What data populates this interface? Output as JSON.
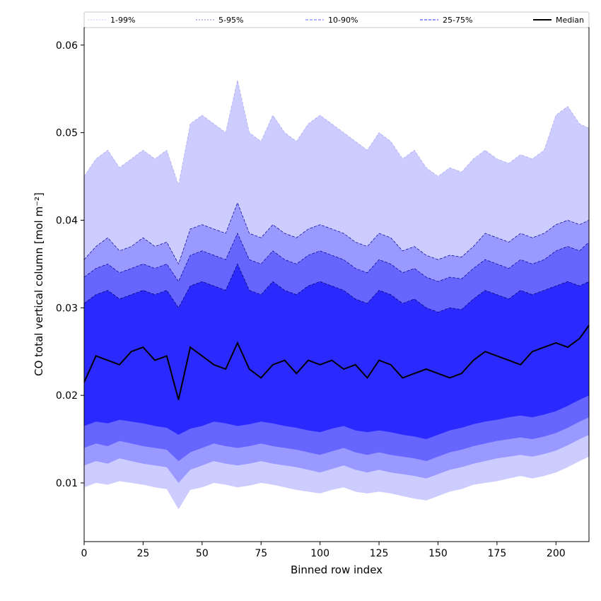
{
  "chart_data": {
    "type": "area",
    "xlabel": "Binned row index",
    "ylabel": "CO total vertical column [mol m⁻²]",
    "xlim": [
      0,
      214
    ],
    "ylim": [
      0.0033,
      0.062
    ],
    "x_ticks": [
      0,
      25,
      50,
      75,
      100,
      125,
      150,
      175,
      200
    ],
    "y_ticks": [
      0.01,
      0.02,
      0.03,
      0.04,
      0.05,
      0.06
    ],
    "x_tick_labels": [
      "0",
      "25",
      "50",
      "75",
      "100",
      "125",
      "150",
      "175",
      "200"
    ],
    "y_tick_labels": [
      "0.01",
      "0.02",
      "0.03",
      "0.04",
      "0.05",
      "0.06"
    ],
    "grid": false,
    "legend_position": "top, spanning full width",
    "legend": [
      "1-99%",
      "5-95%",
      "10-90%",
      "25-75%",
      "Median"
    ],
    "x": [
      0,
      5,
      10,
      15,
      20,
      25,
      30,
      35,
      40,
      45,
      50,
      55,
      60,
      65,
      70,
      75,
      80,
      85,
      90,
      95,
      100,
      105,
      110,
      115,
      120,
      125,
      130,
      135,
      140,
      145,
      150,
      155,
      160,
      165,
      170,
      175,
      180,
      185,
      190,
      195,
      200,
      205,
      210,
      214
    ],
    "bands": [
      {
        "name": "1-99%",
        "color": "#ccccff",
        "line_color": "#aaaaee",
        "lower": [
          0.0095,
          0.01,
          0.0098,
          0.0102,
          0.01,
          0.0098,
          0.0095,
          0.0093,
          0.007,
          0.0092,
          0.0095,
          0.01,
          0.0098,
          0.0095,
          0.0097,
          0.01,
          0.0098,
          0.0095,
          0.0092,
          0.009,
          0.0088,
          0.0092,
          0.0095,
          0.009,
          0.0088,
          0.009,
          0.0088,
          0.0085,
          0.0082,
          0.008,
          0.0085,
          0.009,
          0.0093,
          0.0098,
          0.01,
          0.0102,
          0.0105,
          0.0108,
          0.0105,
          0.0108,
          0.0112,
          0.0118,
          0.0125,
          0.013
        ],
        "upper": [
          0.045,
          0.047,
          0.048,
          0.046,
          0.047,
          0.048,
          0.047,
          0.048,
          0.044,
          0.051,
          0.052,
          0.051,
          0.05,
          0.056,
          0.05,
          0.049,
          0.052,
          0.05,
          0.049,
          0.051,
          0.052,
          0.051,
          0.05,
          0.049,
          0.048,
          0.05,
          0.049,
          0.047,
          0.048,
          0.046,
          0.045,
          0.046,
          0.0455,
          0.047,
          0.048,
          0.047,
          0.0465,
          0.0475,
          0.047,
          0.048,
          0.052,
          0.053,
          0.051,
          0.0505
        ]
      },
      {
        "name": "5-95%",
        "color": "#9999ff",
        "line_color": "#000099",
        "lower": [
          0.012,
          0.0125,
          0.0122,
          0.0128,
          0.0125,
          0.0122,
          0.012,
          0.0118,
          0.01,
          0.0115,
          0.012,
          0.0125,
          0.0122,
          0.012,
          0.0122,
          0.0125,
          0.0122,
          0.012,
          0.0118,
          0.0115,
          0.0112,
          0.0116,
          0.012,
          0.0115,
          0.0112,
          0.0115,
          0.0112,
          0.011,
          0.0108,
          0.0105,
          0.011,
          0.0115,
          0.0118,
          0.0122,
          0.0125,
          0.0128,
          0.013,
          0.0132,
          0.013,
          0.0133,
          0.0137,
          0.0143,
          0.015,
          0.0155
        ],
        "upper": [
          0.0355,
          0.037,
          0.038,
          0.0365,
          0.037,
          0.038,
          0.037,
          0.0375,
          0.035,
          0.039,
          0.0395,
          0.039,
          0.0385,
          0.042,
          0.0385,
          0.038,
          0.0395,
          0.0385,
          0.038,
          0.039,
          0.0395,
          0.039,
          0.0385,
          0.0375,
          0.037,
          0.0385,
          0.038,
          0.0365,
          0.037,
          0.036,
          0.0355,
          0.036,
          0.0358,
          0.037,
          0.0385,
          0.038,
          0.0375,
          0.0385,
          0.038,
          0.0385,
          0.0395,
          0.04,
          0.0395,
          0.04
        ]
      },
      {
        "name": "10-90%",
        "color": "#6666ff",
        "line_color": "#000099",
        "lower": [
          0.014,
          0.0145,
          0.0142,
          0.0148,
          0.0145,
          0.0142,
          0.014,
          0.0138,
          0.0125,
          0.0135,
          0.014,
          0.0145,
          0.0142,
          0.014,
          0.0142,
          0.0145,
          0.0142,
          0.014,
          0.0138,
          0.0135,
          0.0132,
          0.0136,
          0.014,
          0.0135,
          0.0132,
          0.0135,
          0.0132,
          0.013,
          0.0128,
          0.0125,
          0.013,
          0.0135,
          0.0138,
          0.0142,
          0.0145,
          0.0148,
          0.015,
          0.0152,
          0.015,
          0.0153,
          0.0157,
          0.0163,
          0.017,
          0.0175
        ],
        "upper": [
          0.0335,
          0.0345,
          0.035,
          0.034,
          0.0345,
          0.035,
          0.0345,
          0.035,
          0.033,
          0.036,
          0.0365,
          0.036,
          0.0355,
          0.0385,
          0.0355,
          0.035,
          0.0365,
          0.0355,
          0.035,
          0.036,
          0.0365,
          0.036,
          0.0355,
          0.0345,
          0.034,
          0.0355,
          0.035,
          0.034,
          0.0345,
          0.0335,
          0.033,
          0.0335,
          0.0333,
          0.0345,
          0.0355,
          0.035,
          0.0345,
          0.0355,
          0.035,
          0.0355,
          0.0365,
          0.037,
          0.0365,
          0.0375
        ]
      },
      {
        "name": "25-75%",
        "color": "#2a2aff",
        "line_color": "#000066",
        "lower": [
          0.0165,
          0.017,
          0.0168,
          0.0172,
          0.017,
          0.0168,
          0.0165,
          0.0163,
          0.0155,
          0.0162,
          0.0165,
          0.017,
          0.0168,
          0.0165,
          0.0167,
          0.017,
          0.0168,
          0.0165,
          0.0163,
          0.016,
          0.0158,
          0.0162,
          0.0165,
          0.016,
          0.0158,
          0.016,
          0.0158,
          0.0155,
          0.0153,
          0.015,
          0.0155,
          0.016,
          0.0163,
          0.0167,
          0.017,
          0.0172,
          0.0175,
          0.0177,
          0.0175,
          0.0178,
          0.0182,
          0.0188,
          0.0195,
          0.02
        ],
        "upper": [
          0.0305,
          0.0315,
          0.032,
          0.031,
          0.0315,
          0.032,
          0.0315,
          0.032,
          0.03,
          0.0325,
          0.033,
          0.0325,
          0.032,
          0.035,
          0.032,
          0.0315,
          0.033,
          0.032,
          0.0315,
          0.0325,
          0.033,
          0.0325,
          0.032,
          0.031,
          0.0305,
          0.032,
          0.0315,
          0.0305,
          0.031,
          0.03,
          0.0295,
          0.03,
          0.0298,
          0.031,
          0.032,
          0.0315,
          0.031,
          0.032,
          0.0315,
          0.032,
          0.0325,
          0.033,
          0.0325,
          0.033
        ]
      }
    ],
    "median": {
      "name": "Median",
      "color": "#000000",
      "values": [
        0.0215,
        0.0245,
        0.024,
        0.0235,
        0.025,
        0.0255,
        0.024,
        0.0245,
        0.0195,
        0.0255,
        0.0245,
        0.0235,
        0.023,
        0.026,
        0.023,
        0.022,
        0.0235,
        0.024,
        0.0225,
        0.024,
        0.0235,
        0.024,
        0.023,
        0.0235,
        0.022,
        0.024,
        0.0235,
        0.022,
        0.0225,
        0.023,
        0.0225,
        0.022,
        0.0225,
        0.024,
        0.025,
        0.0245,
        0.024,
        0.0235,
        0.025,
        0.0255,
        0.026,
        0.0255,
        0.0265,
        0.028
      ]
    }
  }
}
